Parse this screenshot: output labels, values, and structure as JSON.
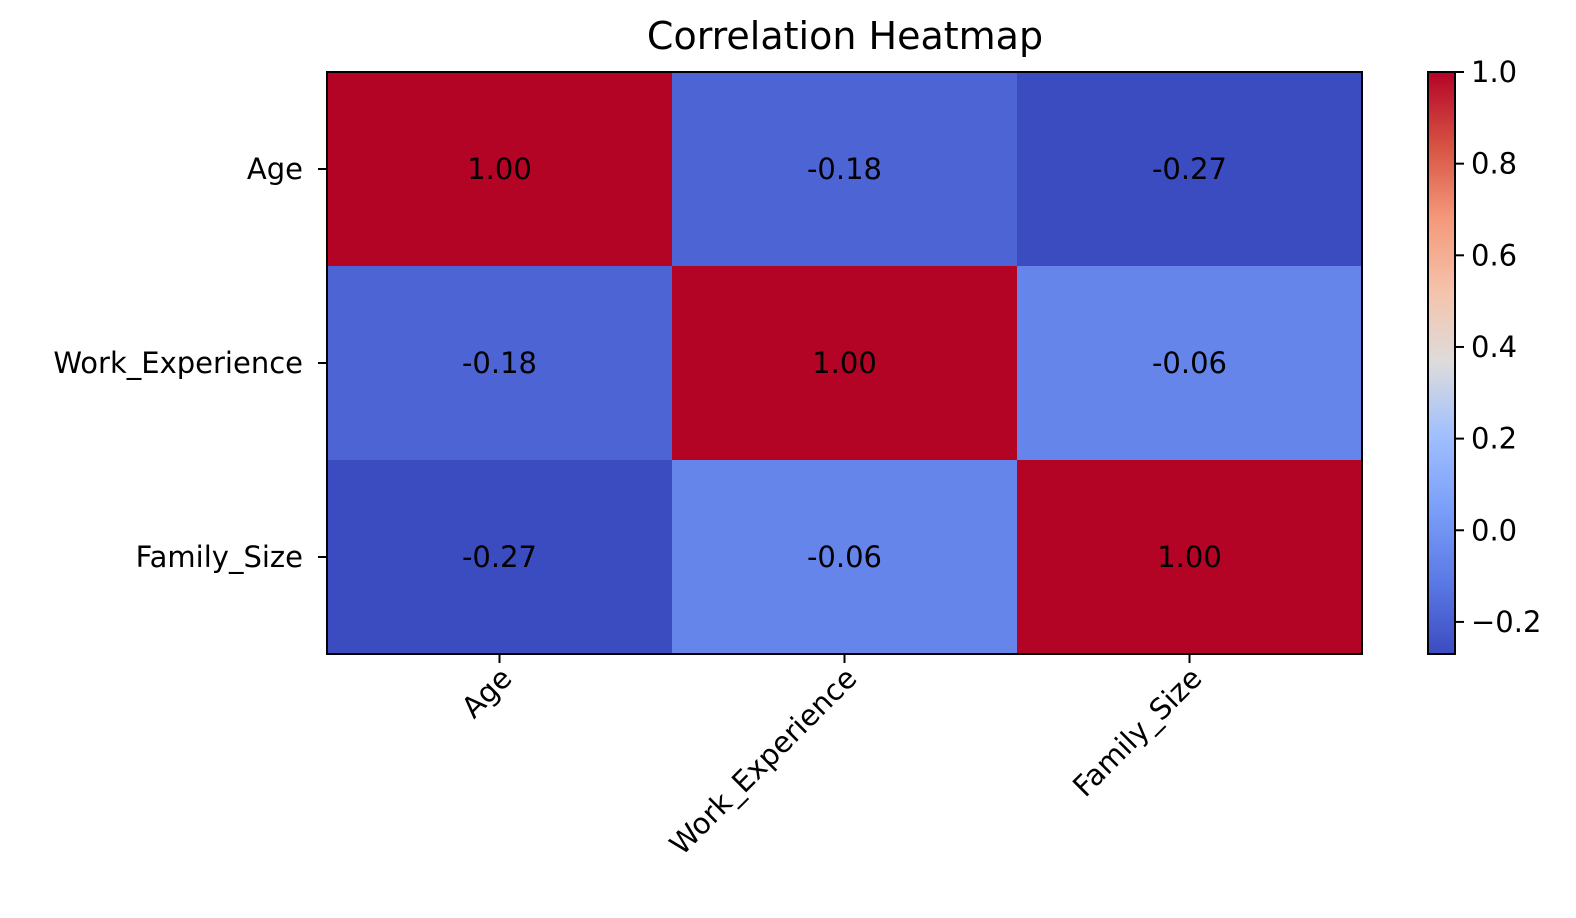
{
  "chart_data": {
    "type": "heatmap",
    "title": "Correlation Heatmap",
    "rows": [
      "Age",
      "Work_Experience",
      "Family_Size"
    ],
    "columns": [
      "Age",
      "Work_Experience",
      "Family_Size"
    ],
    "values": [
      [
        1.0,
        -0.18,
        -0.27
      ],
      [
        -0.18,
        1.0,
        -0.06
      ],
      [
        -0.27,
        -0.06,
        1.0
      ]
    ],
    "value_format": "0.00",
    "colormap": "coolwarm",
    "colorbar": {
      "range": [
        -0.27,
        1.0
      ],
      "ticks": [
        1.0,
        0.8,
        0.6,
        0.4,
        0.2,
        0.0,
        -0.2
      ],
      "tick_labels": [
        "1.0",
        "0.8",
        "0.6",
        "0.4",
        "0.2",
        "0.0",
        "−0.2"
      ]
    },
    "x_tick_rotation": 45,
    "grid": false
  }
}
